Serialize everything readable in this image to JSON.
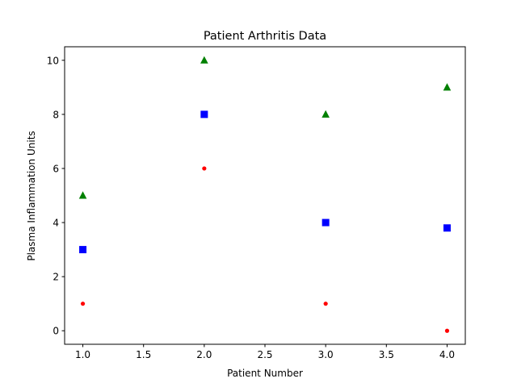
{
  "chart_data": {
    "type": "scatter",
    "title": "Patient Arthritis Data",
    "xlabel": "Patient Number",
    "ylabel": "Plasma Inflammation Units",
    "xlim": [
      0.85,
      4.15
    ],
    "ylim": [
      -0.5,
      10.5
    ],
    "xticks": [
      1.0,
      1.5,
      2.0,
      2.5,
      3.0,
      3.5,
      4.0
    ],
    "xtick_labels": [
      "1.0",
      "1.5",
      "2.0",
      "2.5",
      "3.0",
      "3.5",
      "4.0"
    ],
    "yticks": [
      0,
      2,
      4,
      6,
      8,
      10
    ],
    "ytick_labels": [
      "0",
      "2",
      "4",
      "6",
      "8",
      "10"
    ],
    "grid": false,
    "series": [
      {
        "marker": "dot",
        "color": "#ff0000",
        "x": [
          1,
          2,
          3,
          4
        ],
        "y": [
          1,
          6,
          1,
          0
        ]
      },
      {
        "marker": "square",
        "color": "#0000ff",
        "x": [
          1,
          2,
          3,
          4
        ],
        "y": [
          3,
          8,
          4,
          3.8
        ]
      },
      {
        "marker": "triangle",
        "color": "#008000",
        "x": [
          1,
          2,
          3,
          4
        ],
        "y": [
          5,
          10,
          8,
          9
        ]
      }
    ]
  }
}
